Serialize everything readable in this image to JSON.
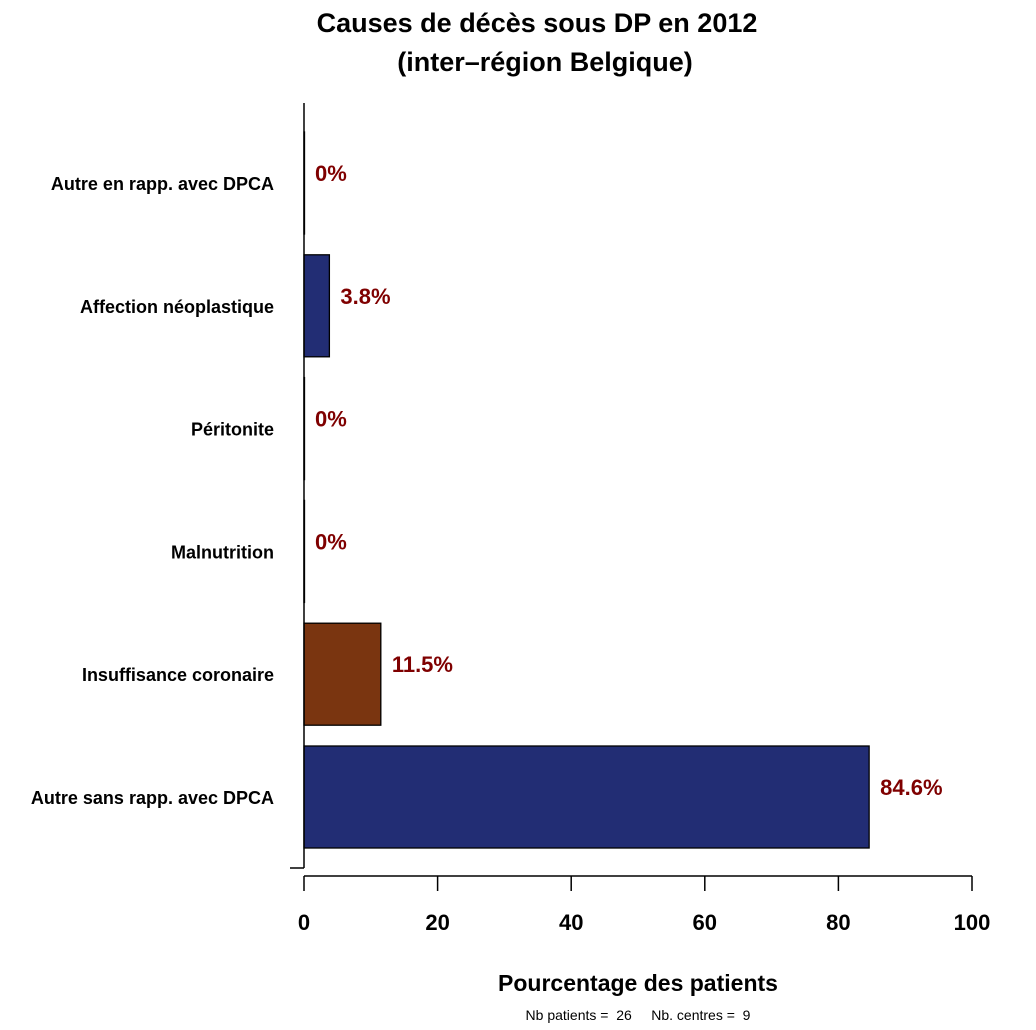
{
  "chart_data": {
    "type": "bar",
    "orientation": "horizontal",
    "title": "Causes de décès sous DP en 2012",
    "subtitle": "(inter–région Belgique)",
    "xlabel": "Pourcentage des patients",
    "ylabel": "",
    "xlim": [
      0,
      100
    ],
    "xticks": [
      0,
      20,
      40,
      60,
      80,
      100
    ],
    "categories": [
      "Autre en rapp. avec DPCA",
      "Affection néoplastique",
      "Péritonite",
      "Malnutrition",
      "Insuffisance coronaire",
      "Autre sans rapp. avec DPCA"
    ],
    "values": [
      0,
      3.8,
      0,
      0,
      11.5,
      84.6
    ],
    "value_labels": [
      "0%",
      "3.8%",
      "0%",
      "0%",
      "11.5%",
      "84.6%"
    ],
    "bar_colors": [
      "#222d74",
      "#222d74",
      "#222d74",
      "#222d74",
      "#7a3510",
      "#222d74"
    ],
    "label_color": "#7f0000",
    "grid": false,
    "footnote": "Nb patients =  26     Nb. centres =  9"
  }
}
